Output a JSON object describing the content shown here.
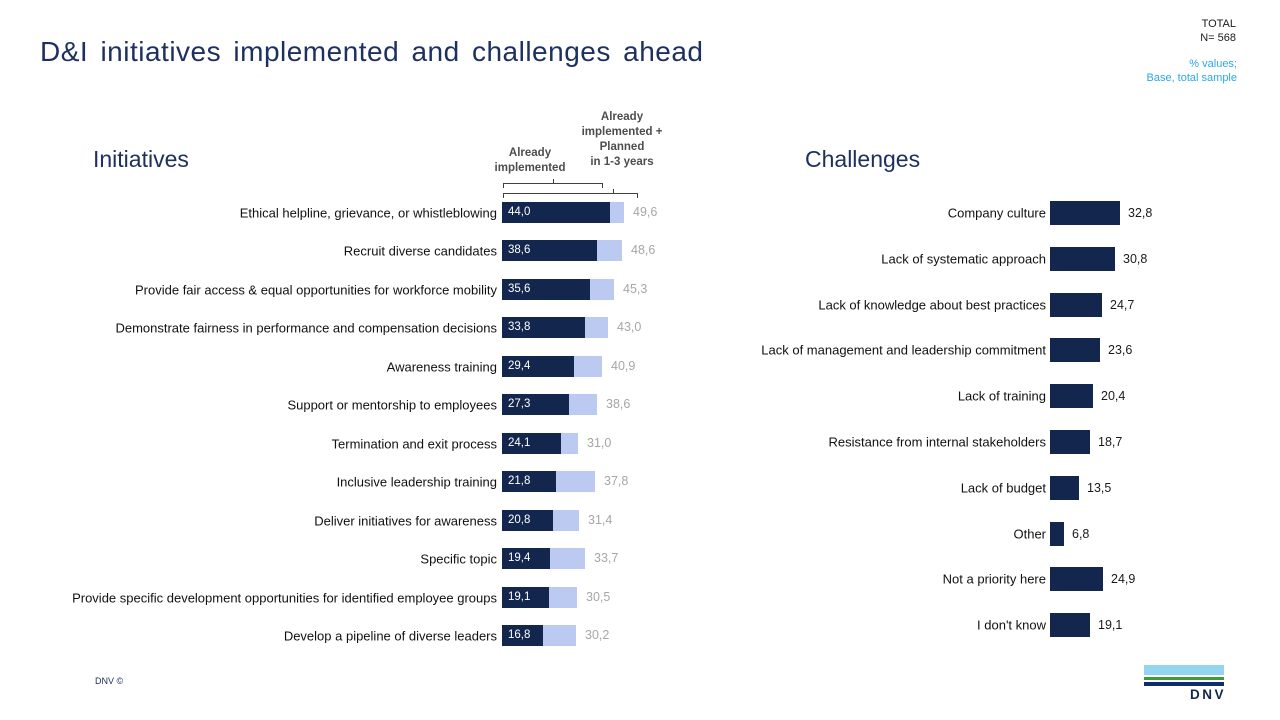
{
  "slide": {
    "title": "D&I initiatives implemented and challenges ahead",
    "total_label": "TOTAL",
    "total_n": "N= 568",
    "note_line1": "% values;",
    "note_line2": "Base, total sample",
    "footer_copyright": "DNV ©",
    "logo_text": "DNV"
  },
  "colors": {
    "title_navy": "#1e3060",
    "bar_dark": "#13264d",
    "bar_light": "#bcc9f1",
    "value_gray": "#a6a6a6",
    "note_blue": "#29a9e2",
    "logo_sky": "#93d5ef",
    "logo_green": "#3e9b35",
    "logo_navy": "#0f2d6e"
  },
  "left_chart": {
    "header1_lines": [
      "Already",
      "implemented"
    ],
    "header2_lines": [
      "Already",
      "implemented +",
      "Planned",
      "in 1-3 years"
    ]
  },
  "chart_data": [
    {
      "type": "bar",
      "title": "Initiatives",
      "orientation": "horizontal",
      "value_format": "percent, comma decimal",
      "xlim": [
        0,
        55
      ],
      "legend_position": "top (bracket labels)",
      "grid": false,
      "categories": [
        "Ethical helpline, grievance, or whistleblowing",
        "Recruit diverse candidates",
        "Provide fair access & equal opportunities for workforce mobility",
        "Demonstrate fairness in performance and compensation decisions",
        "Awareness training",
        "Support or mentorship to employees",
        "Termination and exit process",
        "Inclusive leadership training",
        "Deliver initiatives for awareness",
        "Specific topic",
        "Provide specific development opportunities for identified employee groups",
        "Develop a pipeline of diverse leaders"
      ],
      "series": [
        {
          "name": "Already implemented",
          "values": [
            44.0,
            38.6,
            35.6,
            33.8,
            29.4,
            27.3,
            24.1,
            21.8,
            20.8,
            19.4,
            19.1,
            16.8
          ]
        },
        {
          "name": "Already implemented + Planned in 1-3 years",
          "values": [
            49.6,
            48.6,
            45.3,
            43.0,
            40.9,
            38.6,
            31.0,
            37.8,
            31.4,
            33.7,
            30.5,
            30.2
          ]
        }
      ]
    },
    {
      "type": "bar",
      "title": "Challenges",
      "orientation": "horizontal",
      "value_format": "percent, comma decimal",
      "xlim": [
        0,
        40
      ],
      "grid": false,
      "categories": [
        "Company culture",
        "Lack of systematic approach",
        "Lack of knowledge about best practices",
        "Lack of management and leadership commitment",
        "Lack of training",
        "Resistance from internal stakeholders",
        "Lack of budget",
        "Other",
        "Not a priority here",
        "I don't know"
      ],
      "values": [
        32.8,
        30.8,
        24.7,
        23.6,
        20.4,
        18.7,
        13.5,
        6.8,
        24.9,
        19.1
      ]
    }
  ]
}
